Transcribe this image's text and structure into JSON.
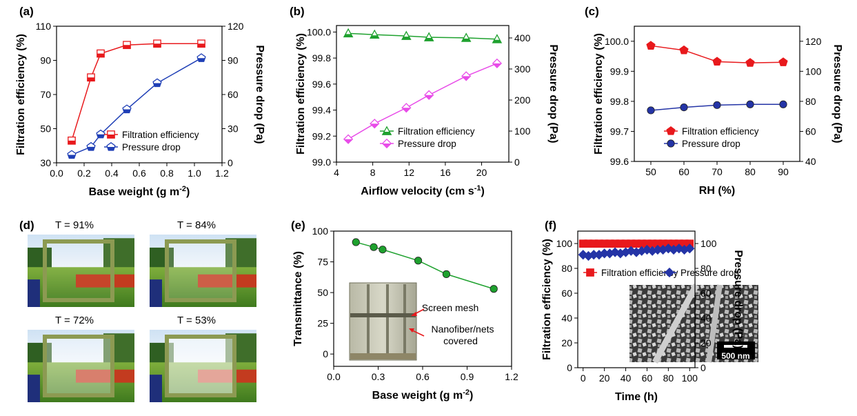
{
  "colors": {
    "red": "#e8191c",
    "blue": "#1f3fb6",
    "green": "#1ea12e",
    "magenta": "#e84ce8",
    "navy": "#2434a6"
  },
  "chart_data": [
    {
      "id": "a",
      "panel_label": "(a)",
      "type": "line",
      "xlabel": "Base weight (g m",
      "xlabel_sup": "-2",
      "xlabel_end": ")",
      "ylabel": "Filtration efficiency (%)",
      "y2label": "Pressure drop (Pa)",
      "xlim": [
        0.0,
        1.2
      ],
      "ylim": [
        30,
        110
      ],
      "y2lim": [
        0,
        120
      ],
      "xticks": [
        "0.0",
        "0.2",
        "0.4",
        "0.6",
        "0.8",
        "1.0",
        "1.2"
      ],
      "yticks": [
        "30",
        "50",
        "70",
        "90",
        "110"
      ],
      "y2ticks": [
        "0",
        "30",
        "60",
        "90",
        "120"
      ],
      "legend": [
        "Filtration efficiency",
        "Pressure drop"
      ],
      "series": [
        {
          "name": "Filtration efficiency",
          "axis": "left",
          "color": "#e8191c",
          "marker": "square-half",
          "x": [
            0.11,
            0.25,
            0.32,
            0.51,
            0.73,
            1.05
          ],
          "y": [
            43,
            80,
            94,
            99,
            99.8,
            99.8
          ]
        },
        {
          "name": "Pressure drop",
          "axis": "right",
          "color": "#1f3fb6",
          "marker": "pentagon-half",
          "x": [
            0.11,
            0.25,
            0.32,
            0.51,
            0.73,
            1.05
          ],
          "y": [
            7,
            14,
            25,
            47,
            70,
            92
          ]
        }
      ]
    },
    {
      "id": "b",
      "panel_label": "(b)",
      "type": "line",
      "xlabel": "Airflow velocity (cm s",
      "xlabel_sup": "-1",
      "xlabel_end": ")",
      "ylabel": "Filtration efficiency (%)",
      "y2label": "Pressure drop (Pa)",
      "xlim": [
        4,
        23
      ],
      "ylim": [
        99.0,
        100.05
      ],
      "y2lim": [
        0,
        440
      ],
      "xticks": [
        "4",
        "8",
        "12",
        "16",
        "20"
      ],
      "yticks": [
        "99.0",
        "99.2",
        "99.4",
        "99.6",
        "99.8",
        "100.0"
      ],
      "y2ticks": [
        "0",
        "100",
        "200",
        "300",
        "400"
      ],
      "legend": [
        "Filtration efficiency",
        "Pressure drop"
      ],
      "series": [
        {
          "name": "Filtration efficiency",
          "axis": "left",
          "color": "#1ea12e",
          "marker": "triangle-half",
          "x": [
            5.3,
            8.2,
            11.7,
            14.2,
            18.3,
            21.7
          ],
          "y": [
            99.99,
            99.98,
            99.97,
            99.96,
            99.955,
            99.945
          ]
        },
        {
          "name": "Pressure drop",
          "axis": "right",
          "color": "#e84ce8",
          "marker": "diamond-half",
          "x": [
            5.3,
            8.2,
            11.7,
            14.2,
            18.3,
            21.7
          ],
          "y": [
            74,
            124,
            175,
            216,
            277,
            318
          ]
        }
      ]
    },
    {
      "id": "c",
      "panel_label": "(c)",
      "type": "line",
      "xlabel": "RH (%)",
      "xlabel_sup": "",
      "xlabel_end": "",
      "ylabel": "Filtration efficiency (%)",
      "y2label": "Pressure drop (Pa)",
      "xlim": [
        45,
        95
      ],
      "ylim": [
        99.6,
        100.05
      ],
      "y2lim": [
        40,
        130
      ],
      "xticks": [
        "50",
        "60",
        "70",
        "80",
        "90"
      ],
      "yticks": [
        "99.6",
        "99.7",
        "99.8",
        "99.9",
        "100.0"
      ],
      "y2ticks": [
        "40",
        "60",
        "80",
        "100",
        "120"
      ],
      "legend": [
        "Filtration efficiency",
        "Pressure drop"
      ],
      "series": [
        {
          "name": "Filtration efficiency",
          "axis": "left",
          "color": "#e8191c",
          "marker": "pentagon",
          "x": [
            50,
            60,
            70,
            80,
            90
          ],
          "y": [
            99.985,
            99.97,
            99.932,
            99.928,
            99.93
          ]
        },
        {
          "name": "Pressure drop",
          "axis": "right",
          "color": "#2434a6",
          "marker": "circle",
          "x": [
            50,
            60,
            70,
            80,
            90
          ],
          "y": [
            74,
            76,
            77.5,
            78,
            78
          ]
        }
      ]
    },
    {
      "id": "e",
      "panel_label": "(e)",
      "type": "line",
      "xlabel": "Base weight (g m",
      "xlabel_sup": "-2",
      "xlabel_end": ")",
      "ylabel": "Transmittance (%)",
      "xlim": [
        0.0,
        1.2
      ],
      "ylim": [
        -10,
        100
      ],
      "xticks": [
        "0.0",
        "0.3",
        "0.6",
        "0.9",
        "1.2"
      ],
      "yticks": [
        "0",
        "25",
        "50",
        "75",
        "100"
      ],
      "inset_labels": [
        "Screen mesh",
        "Nanofiber/nets",
        "covered"
      ],
      "series": [
        {
          "name": "Transmittance",
          "color": "#1ea12e",
          "marker": "circle",
          "x": [
            0.15,
            0.27,
            0.33,
            0.57,
            0.76,
            1.08
          ],
          "y": [
            91,
            87,
            85,
            76,
            65,
            53
          ]
        }
      ]
    },
    {
      "id": "f",
      "panel_label": "(f)",
      "type": "line",
      "xlabel": "Time (h)",
      "xlabel_sup": "",
      "xlabel_end": "",
      "ylabel": "Filtration efficiency (%)",
      "y2label": "Pressure drop (Pa)",
      "xlim": [
        -5,
        105
      ],
      "ylim": [
        0,
        110
      ],
      "y2lim": [
        0,
        110
      ],
      "xticks": [
        "0",
        "20",
        "40",
        "60",
        "80",
        "100"
      ],
      "yticks": [
        "0",
        "20",
        "40",
        "60",
        "80",
        "100"
      ],
      "y2ticks": [
        "0",
        "20",
        "40",
        "60",
        "80",
        "100"
      ],
      "legend": [
        "Filtration efficiency",
        "Pressure drop"
      ],
      "scale_bar": "500 nm",
      "series": [
        {
          "name": "Filtration efficiency",
          "axis": "left",
          "color": "#e8191c",
          "marker": "square",
          "x": [
            0,
            5,
            10,
            15,
            20,
            25,
            30,
            35,
            40,
            45,
            50,
            55,
            60,
            65,
            70,
            75,
            80,
            85,
            90,
            95,
            100
          ],
          "y": [
            99.9,
            99.9,
            99.9,
            99.9,
            99.9,
            99.9,
            99.9,
            99.9,
            99.9,
            99.9,
            99.9,
            99.9,
            99.9,
            99.9,
            99.9,
            99.9,
            99.9,
            99.9,
            99.9,
            99.9,
            99.9
          ]
        },
        {
          "name": "Pressure drop",
          "axis": "right",
          "color": "#2434a6",
          "marker": "diamond",
          "x": [
            0,
            5,
            10,
            15,
            20,
            25,
            30,
            35,
            40,
            45,
            50,
            55,
            60,
            65,
            70,
            75,
            80,
            85,
            90,
            95,
            100
          ],
          "y": [
            91,
            90,
            91,
            91,
            92,
            92,
            93,
            92,
            93,
            94,
            93,
            94,
            95,
            94,
            95,
            95,
            96,
            95,
            96,
            95,
            96
          ]
        }
      ]
    }
  ],
  "photos": {
    "panel_label": "(d)",
    "items": [
      {
        "label": "T = 91%"
      },
      {
        "label": "T = 84%"
      },
      {
        "label": "T = 72%"
      },
      {
        "label": "T = 53%"
      }
    ]
  }
}
